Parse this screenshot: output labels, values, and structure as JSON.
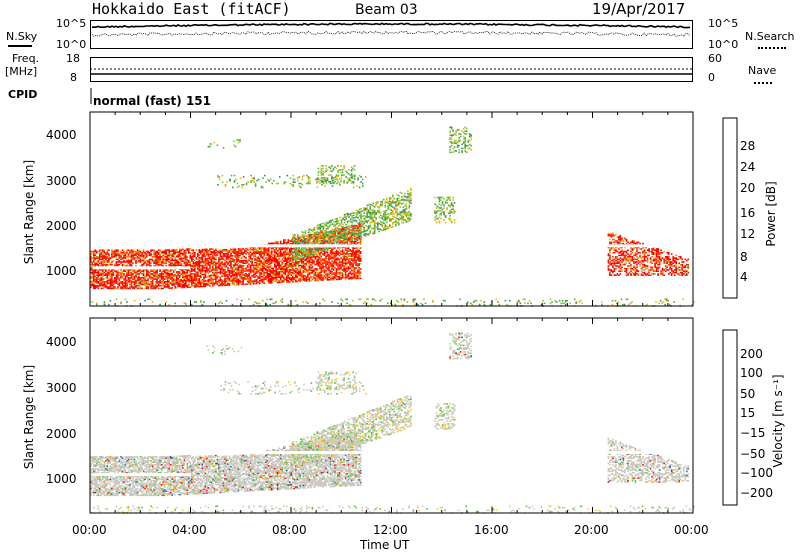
{
  "header": {
    "title": "Hokkaido East (fitACF)",
    "beam": "Beam 03",
    "date": "19/Apr/2017"
  },
  "top_panels": {
    "nsky_label": "N.Sky",
    "nsky_ticks": [
      "10^5",
      "10^0"
    ],
    "nsearch_label": "N.Search",
    "nsearch_ticks": [
      "10^5",
      "10^0"
    ],
    "freq_label": "Freq.",
    "freq_unit": "[MHz]",
    "freq_ticks": [
      "18",
      "8"
    ],
    "nave_label": "Nave",
    "nave_ticks": [
      "60",
      "0"
    ],
    "cpid_label": "CPID",
    "cpid_value": "normal (fast) 151"
  },
  "chart_data": [
    {
      "type": "heatmap",
      "name": "power-panel",
      "ylabel": "Slant Range [km]",
      "yticks": [
        "4000",
        "3000",
        "2000",
        "1000"
      ],
      "ylim": [
        180,
        4600
      ],
      "xlim": [
        0,
        24
      ],
      "colorbar_label": "Power [dB]",
      "colorbar_ticks": [
        "28",
        "24",
        "20",
        "16",
        "12",
        "8",
        "4"
      ],
      "colorbar_colors": [
        "#0000ff",
        "#2050b0",
        "#2f8f6f",
        "#55aa44",
        "#88cc33",
        "#ddcc00",
        "#ffaa00",
        "#ff7700",
        "#ff3300",
        "#ff0000"
      ]
    },
    {
      "type": "heatmap",
      "name": "velocity-panel",
      "ylabel": "Slant Range [km]",
      "yticks": [
        "4000",
        "3000",
        "2000",
        "1000"
      ],
      "ylim": [
        180,
        4600
      ],
      "xlim": [
        0,
        24
      ],
      "colorbar_label": "Velocity [m s⁻¹]",
      "colorbar_ticks": [
        "200",
        "100",
        "50",
        "15",
        "−15",
        "−50",
        "−100",
        "−200"
      ],
      "colorbar_colors": [
        "#1a2a9a",
        "#2a6aa0",
        "#3f9f6f",
        "#55cc33",
        "#c8c8c0",
        "#ffcc33",
        "#ff9900",
        "#ff5500",
        "#ff0000"
      ]
    }
  ],
  "xaxis": {
    "ticks": [
      "00:00",
      "04:00",
      "08:00",
      "12:00",
      "16:00",
      "20:00",
      "00:00"
    ],
    "label": "Time UT"
  }
}
